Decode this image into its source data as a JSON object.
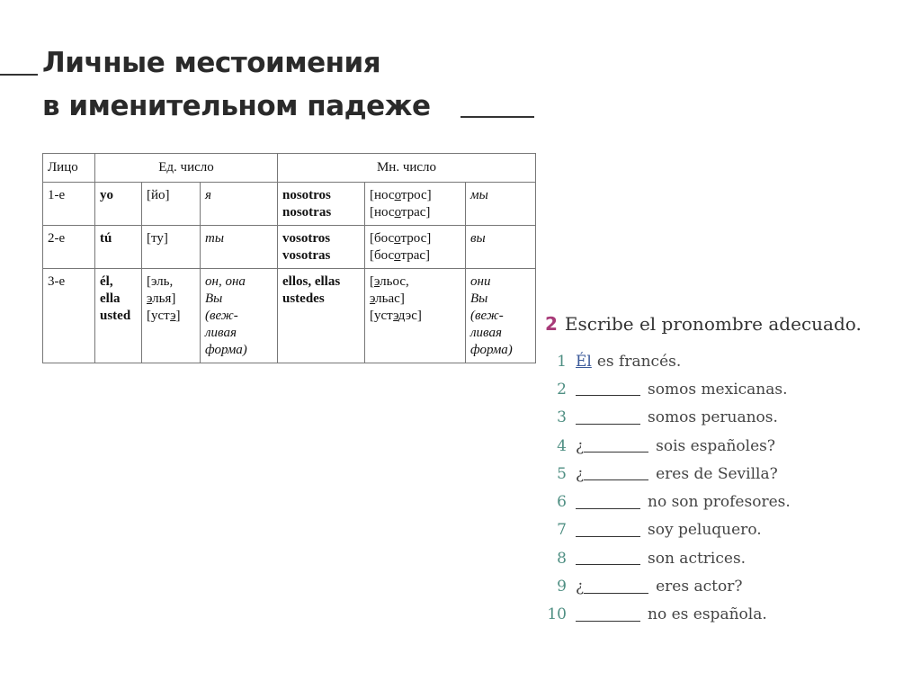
{
  "title": {
    "line1": "Личные местоимения",
    "line2": "в именительном падеже"
  },
  "table": {
    "header": [
      "Лицо",
      "Ед. число",
      "Мн. число"
    ],
    "rows": [
      {
        "person": "1-е",
        "sg": [
          [
            "yo"
          ]
        ],
        "sg_tr": [
          [
            {
              "t": "[йо]"
            }
          ]
        ],
        "sg_ru": [
          [
            "я"
          ]
        ],
        "pl": [
          [
            "nosotros"
          ],
          [
            "nosotras"
          ]
        ],
        "pl_tr": [
          [
            {
              "t": "[нос"
            },
            {
              "t": "о",
              "u": true
            },
            {
              "t": "трос]"
            }
          ],
          [
            {
              "t": "[нос"
            },
            {
              "t": "о",
              "u": true
            },
            {
              "t": "трас]"
            }
          ]
        ],
        "pl_ru": [
          [
            "мы"
          ]
        ]
      },
      {
        "person": "2-е",
        "sg": [
          [
            "tú"
          ]
        ],
        "sg_tr": [
          [
            {
              "t": "[ту]"
            }
          ]
        ],
        "sg_ru": [
          [
            "ты"
          ]
        ],
        "pl": [
          [
            "vosotros"
          ],
          [
            "vosotras"
          ]
        ],
        "pl_tr": [
          [
            {
              "t": "[бос"
            },
            {
              "t": "о",
              "u": true
            },
            {
              "t": "трос]"
            }
          ],
          [
            {
              "t": "[бос"
            },
            {
              "t": "о",
              "u": true
            },
            {
              "t": "трас]"
            }
          ]
        ],
        "pl_ru": [
          [
            "вы"
          ]
        ]
      },
      {
        "person": "3-е",
        "sg": [
          [
            "él,"
          ],
          [
            "ella"
          ],
          [
            "usted"
          ]
        ],
        "sg_tr": [
          [
            {
              "t": "[эль,"
            }
          ],
          [
            {
              "t": "э",
              "u": true
            },
            {
              "t": "лья]"
            }
          ],
          [
            {
              "t": "[уст"
            },
            {
              "t": "э",
              "u": true
            },
            {
              "t": "]"
            }
          ]
        ],
        "sg_ru": [
          [
            "он, она"
          ],
          [
            "Вы"
          ],
          [
            "(веж-"
          ],
          [
            "ливая"
          ],
          [
            "форма)"
          ]
        ],
        "pl": [
          [
            "ellos, ellas"
          ],
          [
            "ustedes"
          ]
        ],
        "pl_tr": [
          [
            {
              "t": "["
            },
            {
              "t": "э",
              "u": true
            },
            {
              "t": "льос,"
            }
          ],
          [
            {
              "t": "э",
              "u": true
            },
            {
              "t": "льас]"
            }
          ],
          [
            {
              "t": "[уст"
            },
            {
              "t": "э",
              "u": true
            },
            {
              "t": "дэс]"
            }
          ]
        ],
        "pl_ru": [
          [
            "они"
          ],
          [
            "Вы"
          ],
          [
            "(веж-"
          ],
          [
            "ливая"
          ],
          [
            "форма)"
          ]
        ]
      }
    ]
  },
  "exercise": {
    "number": "2",
    "heading": "Escribe el pronombre adecuado.",
    "items": [
      {
        "n": "1",
        "answer": "Él",
        "text": "es francés."
      },
      {
        "n": "2",
        "text": "somos mexicanas."
      },
      {
        "n": "3",
        "text": "somos peruanos."
      },
      {
        "n": "4",
        "q": "¿",
        "text": "sois españoles?"
      },
      {
        "n": "5",
        "q": "¿",
        "text": "eres de Sevilla?"
      },
      {
        "n": "6",
        "text": "no son profesores."
      },
      {
        "n": "7",
        "text": "soy peluquero."
      },
      {
        "n": "8",
        "text": "son actrices."
      },
      {
        "n": "9",
        "q": "¿",
        "text": "eres actor?"
      },
      {
        "n": "10",
        "text": "no es española."
      }
    ]
  },
  "colors": {
    "exercise_number": "#a83a78",
    "item_numbers": "#4f8f83",
    "answer": "#3b5a9a"
  }
}
